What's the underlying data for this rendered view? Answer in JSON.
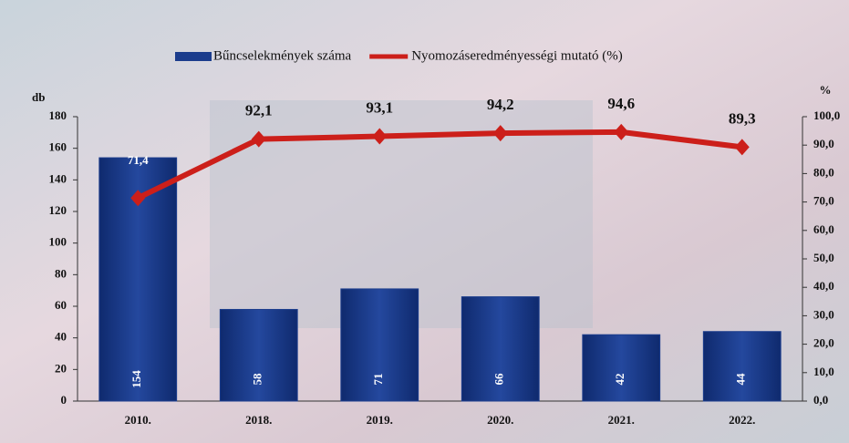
{
  "chart_data": {
    "type": "bar_line",
    "y_label": "db",
    "y2_label": "%",
    "categories": [
      "2010.",
      "2018.",
      "2019.",
      "2020.",
      "2021.",
      "2022."
    ],
    "series": [
      {
        "name": "Bűncselekmények száma",
        "type": "bar",
        "color": "#1b3c8c",
        "values": [
          154,
          58,
          71,
          66,
          42,
          44
        ]
      },
      {
        "name": "Nyomozáseredményességi mutató (%)",
        "type": "line",
        "axis": "y2",
        "color": "#cc1f1a",
        "values": [
          71.4,
          92.1,
          93.1,
          94.2,
          94.6,
          89.3
        ],
        "value_labels": [
          "71,4",
          "92,1",
          "93,1",
          "94,2",
          "94,6",
          "89,3"
        ]
      }
    ],
    "ylim": [
      0,
      180
    ],
    "yticks": [
      0,
      20,
      40,
      60,
      80,
      100,
      120,
      140,
      160,
      180
    ],
    "y2lim": [
      0,
      100
    ],
    "y2ticks": [
      {
        "value": 0,
        "label": "0,0"
      },
      {
        "value": 10,
        "label": "10,0"
      },
      {
        "value": 20,
        "label": "20,0"
      },
      {
        "value": 30,
        "label": "30,0"
      },
      {
        "value": 40,
        "label": "40,0"
      },
      {
        "value": 50,
        "label": "50,0"
      },
      {
        "value": 60,
        "label": "60,0"
      },
      {
        "value": 70,
        "label": "70,0"
      },
      {
        "value": 80,
        "label": "80,0"
      },
      {
        "value": 90,
        "label": "90,0"
      },
      {
        "value": 100,
        "label": "100,0"
      }
    ]
  }
}
